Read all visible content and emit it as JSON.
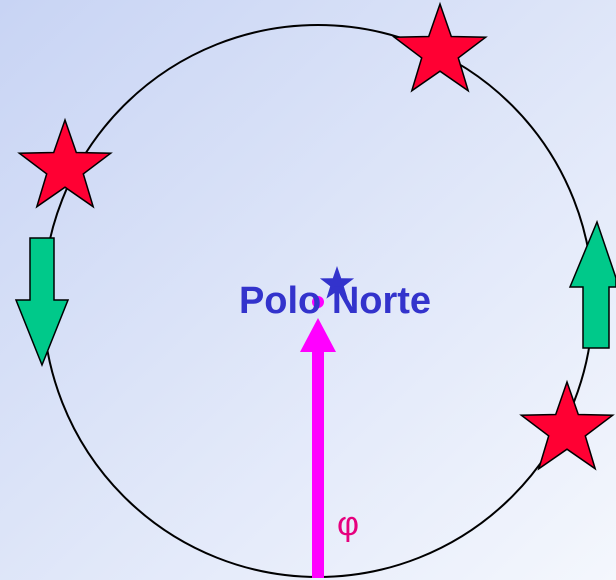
{
  "labels": {
    "center": "Polo Norte",
    "angle": "φ"
  }
}
